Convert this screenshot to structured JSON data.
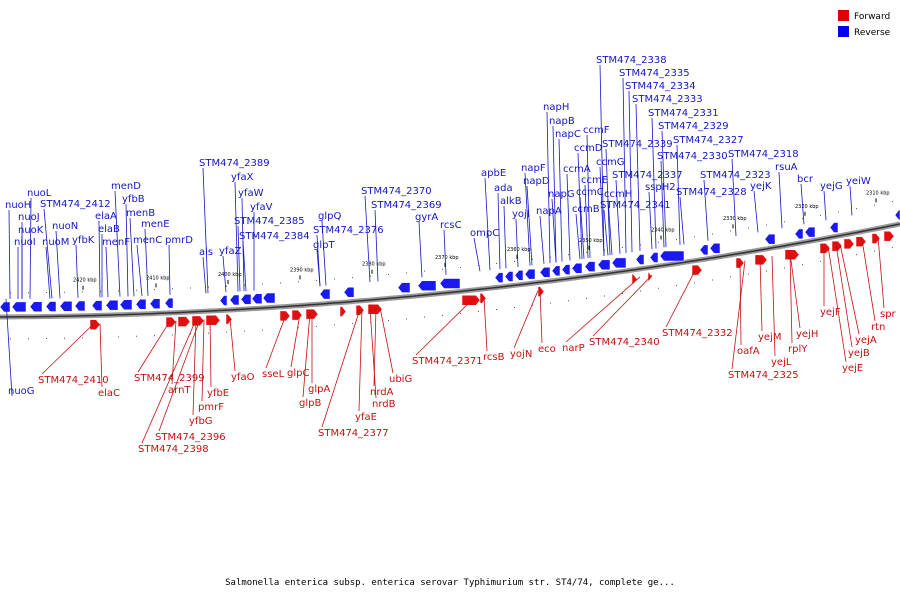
{
  "caption": "Salmonella enterica subsp. enterica serovar Typhimurium str. ST4/74, complete ge...",
  "legend": [
    {
      "label": "Forward",
      "color": "#e00000"
    },
    {
      "label": "Reverse",
      "color": "#0000ee"
    }
  ],
  "colors": {
    "forward_label": "#c41010",
    "reverse_label": "#1515c8",
    "backbone": "#555555"
  },
  "ticks": [
    "2420 kbp",
    "2410 kbp",
    "2400 kbp",
    "2390 kbp",
    "2380 kbp",
    "2370 kbp",
    "2360 kbp",
    "2350 kbp",
    "2340 kbp",
    "2330 kbp",
    "2320 kbp",
    "2310 kbp"
  ],
  "reverse_genes": [
    "nuoL",
    "nuoH",
    "nuoJ",
    "nuoK",
    "nuoI",
    "STM474_2412",
    "nuoN",
    "nuoM",
    "yfbK",
    "elaA",
    "elaB",
    "menF",
    "menD",
    "yfbB",
    "menB",
    "menE",
    "menC",
    "pmrD",
    "ais",
    "yfaZ",
    "STM474_2389",
    "yfaX",
    "yfaW",
    "yfaV",
    "STM474_2385",
    "STM474_2384",
    "glpQ",
    "STM474_2376",
    "glpT",
    "STM474_2370",
    "STM474_2369",
    "gyrA",
    "rcsC",
    "ompC",
    "apbE",
    "ada",
    "alkB",
    "yojI",
    "napF",
    "napD",
    "napA",
    "napH",
    "napB",
    "napC",
    "napG",
    "ccmF",
    "ccmD",
    "ccmA",
    "ccmC",
    "ccmE",
    "ccmB",
    "ccmG",
    "ccmH",
    "STM474_2338",
    "STM474_2335",
    "STM474_2334",
    "STM474_2333",
    "STM474_2331",
    "STM474_2329",
    "STM474_2339",
    "STM474_2327",
    "STM474_2330",
    "STM474_2337",
    "sspH2",
    "STM474_2341",
    "STM474_2328",
    "STM474_2323",
    "STM474_2318",
    "rsuA",
    "yejK",
    "bcr",
    "yejG",
    "yeiW",
    "nuoG"
  ],
  "forward_genes": [
    "STM474_2410",
    "elaC",
    "STM474_2399",
    "arnT",
    "yfbE",
    "pmrF",
    "yfbG",
    "STM474_2396",
    "STM474_2398",
    "yfaO",
    "sseL",
    "glpC",
    "glpA",
    "glpB",
    "STM474_2377",
    "yfaE",
    "nrdB",
    "nrdA",
    "ubiG",
    "STM474_2371",
    "rcsB",
    "yojN",
    "eco",
    "narP",
    "STM474_2340",
    "STM474_2332",
    "oafA",
    "yejM",
    "STM474_2325",
    "yejL",
    "rplY",
    "yejH",
    "yejF",
    "yejA",
    "yejB",
    "yejE",
    "rtn",
    "spr"
  ]
}
